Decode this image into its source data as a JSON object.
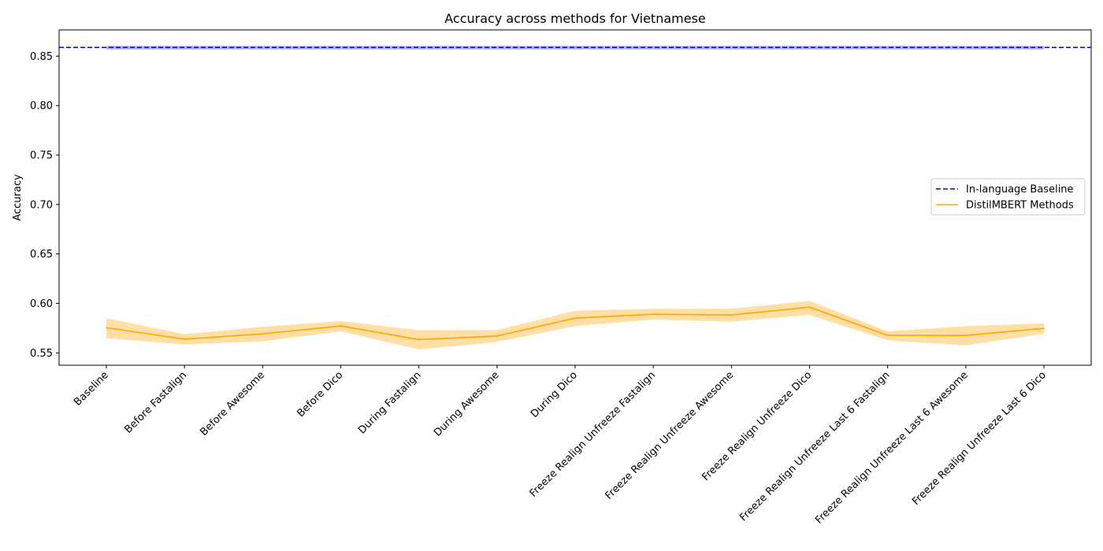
{
  "chart_data": {
    "type": "line",
    "title": "Accuracy across methods for Vietnamese",
    "xlabel": "",
    "ylabel": "Accuracy",
    "ylim": [
      0.5375,
      0.8765
    ],
    "yticks": [
      0.55,
      0.6,
      0.65,
      0.7,
      0.75,
      0.8,
      0.85
    ],
    "ytick_labels": [
      "0.55",
      "0.60",
      "0.65",
      "0.70",
      "0.75",
      "0.80",
      "0.85"
    ],
    "grid": false,
    "legend_position": "center-right",
    "categories": [
      "Baseline",
      "Before Fastalign",
      "Before Awesome",
      "Before Dico",
      "During Fastalign",
      "During Awesome",
      "During Dico",
      "Freeze Realign Unfreeze Fastalign",
      "Freeze Realign Unfreeze Awesome",
      "Freeze Realign Unfreeze Dico",
      "Freeze Realign Unfreeze Last 6 Fastalign",
      "Freeze Realign Unfreeze Last 6 Awesome",
      "Freeze Realign Unfreeze Last 6 Dico"
    ],
    "series": [
      {
        "name": "In-language Baseline",
        "style": "dashed",
        "color": "#0000dd",
        "band_color": "#6b6bff",
        "value": 0.8588,
        "band_low": 0.8568,
        "band_high": 0.8604
      },
      {
        "name": "DistilMBERT Methods",
        "style": "solid",
        "color": "#ffa500",
        "band_color": "#ffd27f",
        "values": [
          0.5755,
          0.5638,
          0.5693,
          0.5772,
          0.5634,
          0.567,
          0.5851,
          0.5891,
          0.5883,
          0.5962,
          0.5677,
          0.5676,
          0.5748
        ],
        "band_low": [
          0.565,
          0.5584,
          0.5618,
          0.5717,
          0.5534,
          0.561,
          0.5771,
          0.5836,
          0.5816,
          0.5883,
          0.5627,
          0.5576,
          0.5693
        ],
        "band_high": [
          0.585,
          0.5688,
          0.5763,
          0.5822,
          0.5729,
          0.573,
          0.5926,
          0.5946,
          0.5946,
          0.6026,
          0.5717,
          0.5771,
          0.5798
        ]
      }
    ]
  }
}
